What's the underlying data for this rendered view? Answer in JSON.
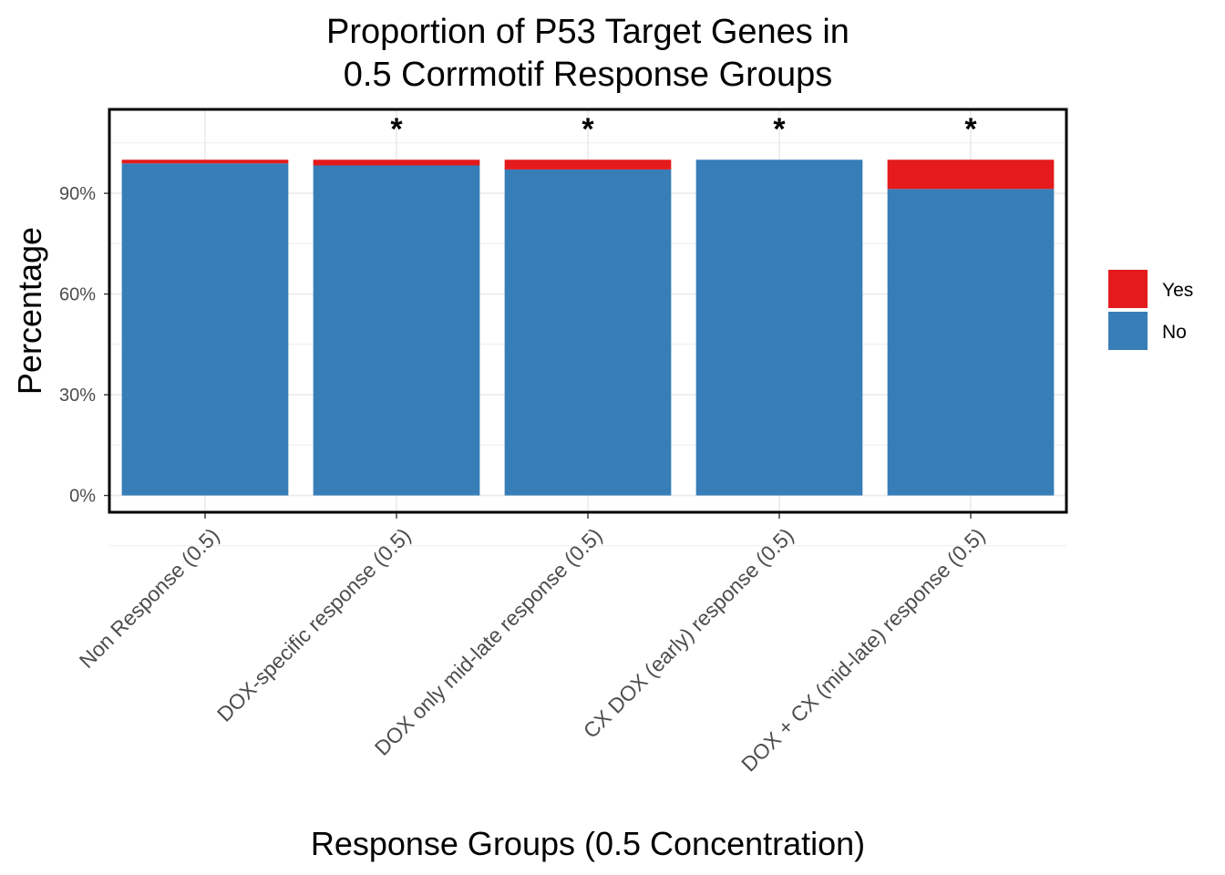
{
  "chart_data": {
    "type": "bar",
    "stacked": true,
    "title": [
      "Proportion of P53 Target Genes in",
      "0.5 Corrmotif Response Groups"
    ],
    "xlabel": "Response Groups (0.5 Concentration)",
    "ylabel": "Percentage",
    "categories": [
      "Non Response (0.5)",
      "DOX-specific response (0.5)",
      "DOX only mid-late response (0.5)",
      "CX DOX (early) response (0.5)",
      "DOX + CX (mid-late) response (0.5)"
    ],
    "series": [
      {
        "name": "No",
        "color": "#377EB8",
        "values": [
          98.9,
          98.3,
          97.1,
          100.0,
          91.3
        ]
      },
      {
        "name": "Yes",
        "color": "#E41A1C",
        "values": [
          1.1,
          1.7,
          2.9,
          0.0,
          8.7
        ]
      }
    ],
    "significance": [
      "",
      "*",
      "*",
      "*",
      "*"
    ],
    "ylim": [
      -5,
      115
    ],
    "yticks": [
      0,
      30,
      60,
      90
    ],
    "ytick_labels": [
      "0%",
      "30%",
      "60%",
      "90%"
    ],
    "grid": true,
    "legend": {
      "position": "right",
      "entries": [
        "Yes",
        "No"
      ]
    }
  }
}
